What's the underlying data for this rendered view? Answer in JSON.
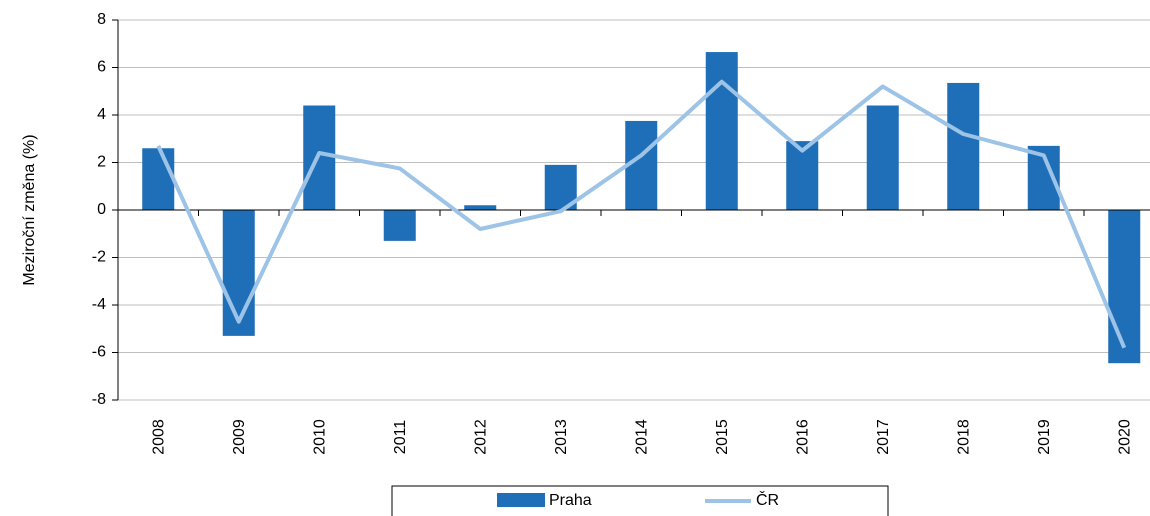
{
  "chart_data": {
    "type": "bar_line",
    "y_label": "Meziroční změna (%)",
    "categories": [
      "2008",
      "2009",
      "2010",
      "2011",
      "2012",
      "2013",
      "2014",
      "2015",
      "2016",
      "2017",
      "2018",
      "2019",
      "2020"
    ],
    "series": [
      {
        "name": "Praha",
        "type": "bar",
        "color": "#1f6fb8",
        "values": [
          2.6,
          -5.3,
          4.4,
          -1.3,
          0.2,
          1.9,
          3.75,
          6.65,
          2.9,
          4.4,
          5.35,
          2.7,
          -6.45
        ]
      },
      {
        "name": "ČR",
        "type": "line",
        "color": "#9dc3e6",
        "values": [
          2.7,
          -4.7,
          2.4,
          1.75,
          -0.8,
          -0.05,
          2.3,
          5.4,
          2.5,
          5.2,
          3.2,
          2.3,
          -5.8
        ]
      }
    ],
    "ylim": [
      -8,
      8
    ],
    "yticks": [
      -8,
      -6,
      -4,
      -2,
      0,
      2,
      4,
      6,
      8
    ],
    "grid": true
  }
}
